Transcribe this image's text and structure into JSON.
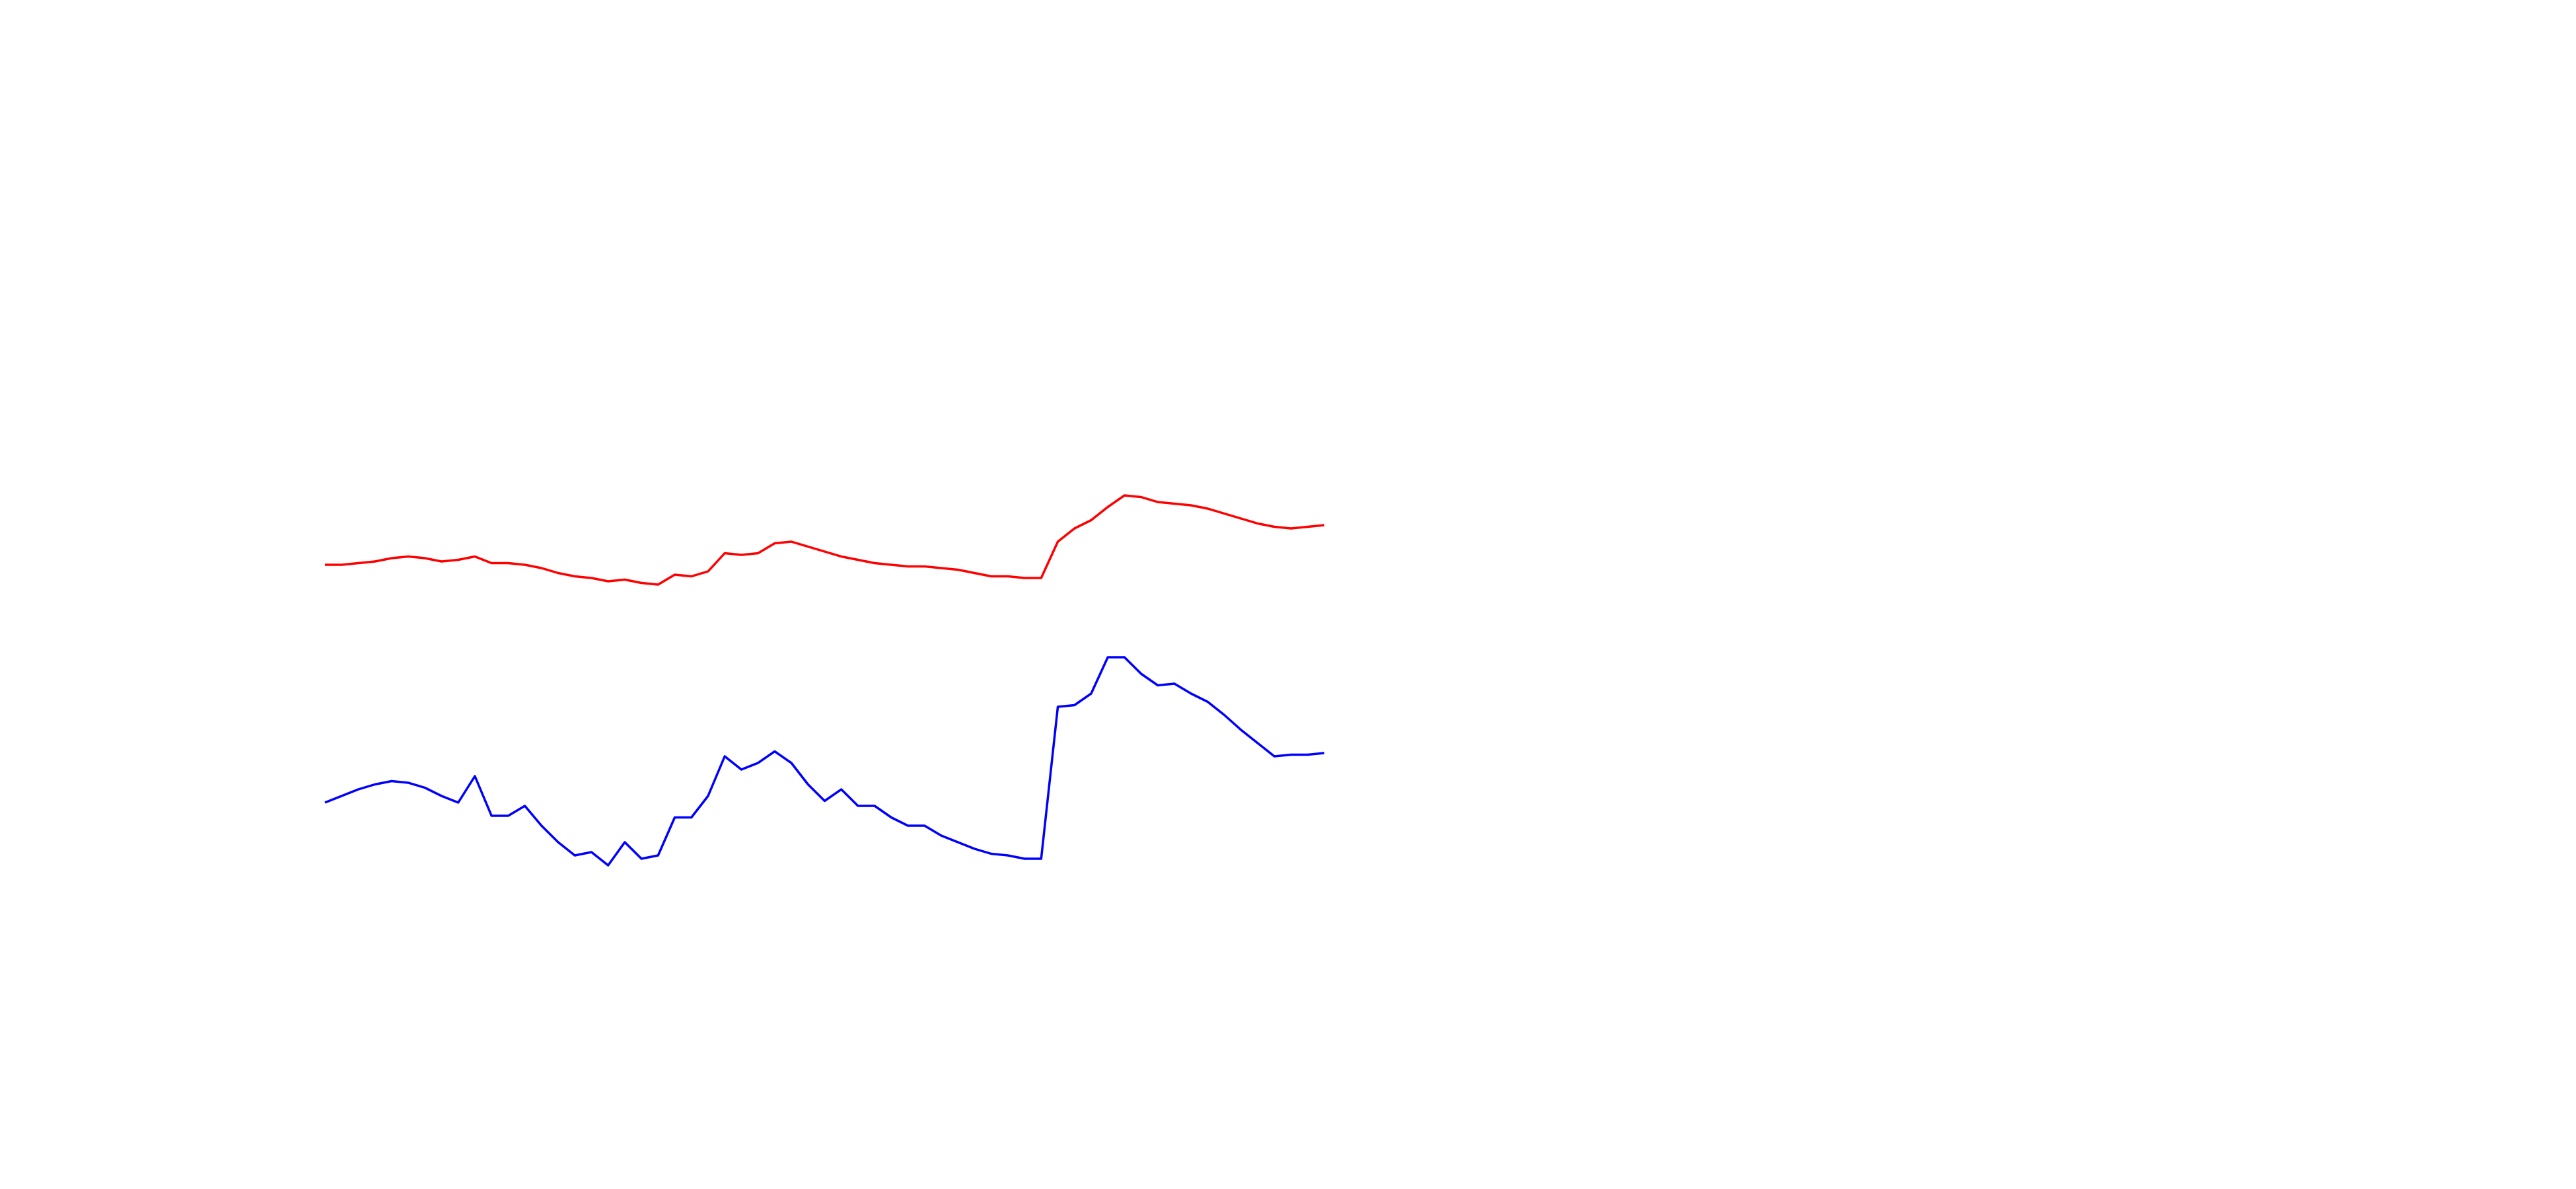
{
  "chart_data": {
    "type": "line",
    "ylim": [
      0,
      720
    ],
    "series": [
      {
        "color": "#ff0000",
        "values": [
          378,
          378,
          379,
          380,
          382,
          383,
          382,
          380,
          381,
          383,
          379,
          379,
          378,
          376,
          373,
          371,
          370,
          368,
          369,
          367,
          366,
          372,
          371,
          374,
          385,
          384,
          385,
          391,
          392,
          389,
          386,
          383,
          381,
          379,
          378,
          377,
          377,
          376,
          375,
          373,
          371,
          371,
          370,
          370,
          392,
          400,
          405,
          413,
          420,
          419,
          416,
          415,
          414,
          412,
          409,
          406,
          403,
          401,
          400,
          401,
          402
        ]
      },
      {
        "color": "#0000ff",
        "values": [
          234,
          238,
          242,
          245,
          247,
          246,
          243,
          238,
          234,
          250,
          226,
          226,
          232,
          220,
          210,
          202,
          204,
          196,
          210,
          200,
          202,
          225,
          225,
          238,
          262,
          254,
          258,
          265,
          258,
          245,
          235,
          242,
          232,
          232,
          225,
          220,
          220,
          214,
          210,
          206,
          203,
          202,
          200,
          200,
          292,
          293,
          300,
          322,
          322,
          312,
          305,
          306,
          300,
          295,
          287,
          278,
          270,
          262,
          263,
          263,
          264
        ]
      }
    ]
  }
}
